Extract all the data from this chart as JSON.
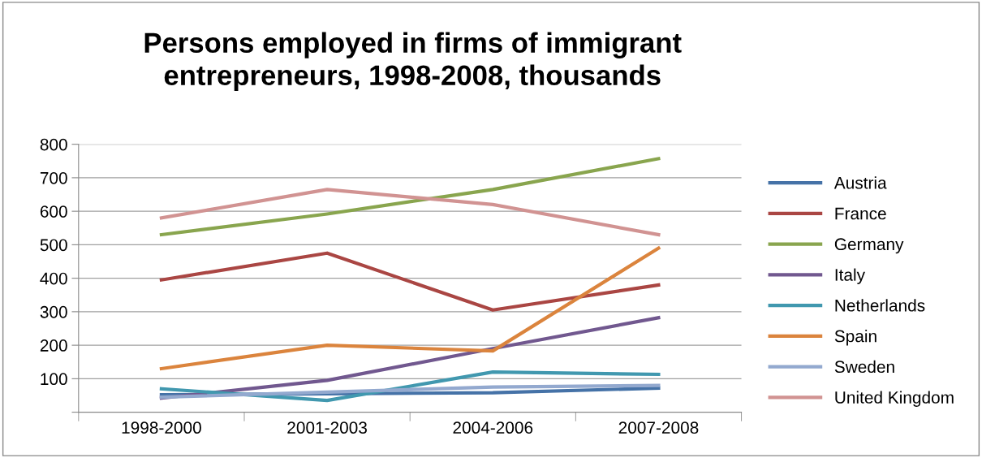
{
  "chart_data": {
    "type": "line",
    "title": "Persons employed in firms of immigrant\nentrepreneurs, 1998-2008, thousands",
    "categories": [
      "1998-2000",
      "2001-2003",
      "2004-2006",
      "2007-2008"
    ],
    "series": [
      {
        "name": "Austria",
        "color": "#4572a7",
        "values": [
          52,
          55,
          58,
          72
        ]
      },
      {
        "name": "France",
        "color": "#aa4643",
        "values": [
          395,
          475,
          305,
          380
        ]
      },
      {
        "name": "Germany",
        "color": "#89a54e",
        "values": [
          530,
          592,
          665,
          757
        ]
      },
      {
        "name": "Italy",
        "color": "#71588f",
        "values": [
          42,
          95,
          190,
          282
        ]
      },
      {
        "name": "Netherlands",
        "color": "#4198af",
        "values": [
          70,
          35,
          120,
          113
        ]
      },
      {
        "name": "Spain",
        "color": "#db843d",
        "values": [
          130,
          200,
          183,
          490
        ]
      },
      {
        "name": "Sweden",
        "color": "#93a9cf",
        "values": [
          45,
          60,
          75,
          80
        ]
      },
      {
        "name": "United Kingdom",
        "color": "#d19392",
        "values": [
          580,
          665,
          620,
          530
        ]
      }
    ],
    "ylim": [
      0,
      800
    ],
    "yticks": [
      {
        "value": 0,
        "label": null
      },
      100,
      200,
      300,
      400,
      500,
      600,
      700,
      800
    ],
    "grid": "y",
    "legend": "right",
    "marker": "none",
    "line_style": "solid"
  }
}
